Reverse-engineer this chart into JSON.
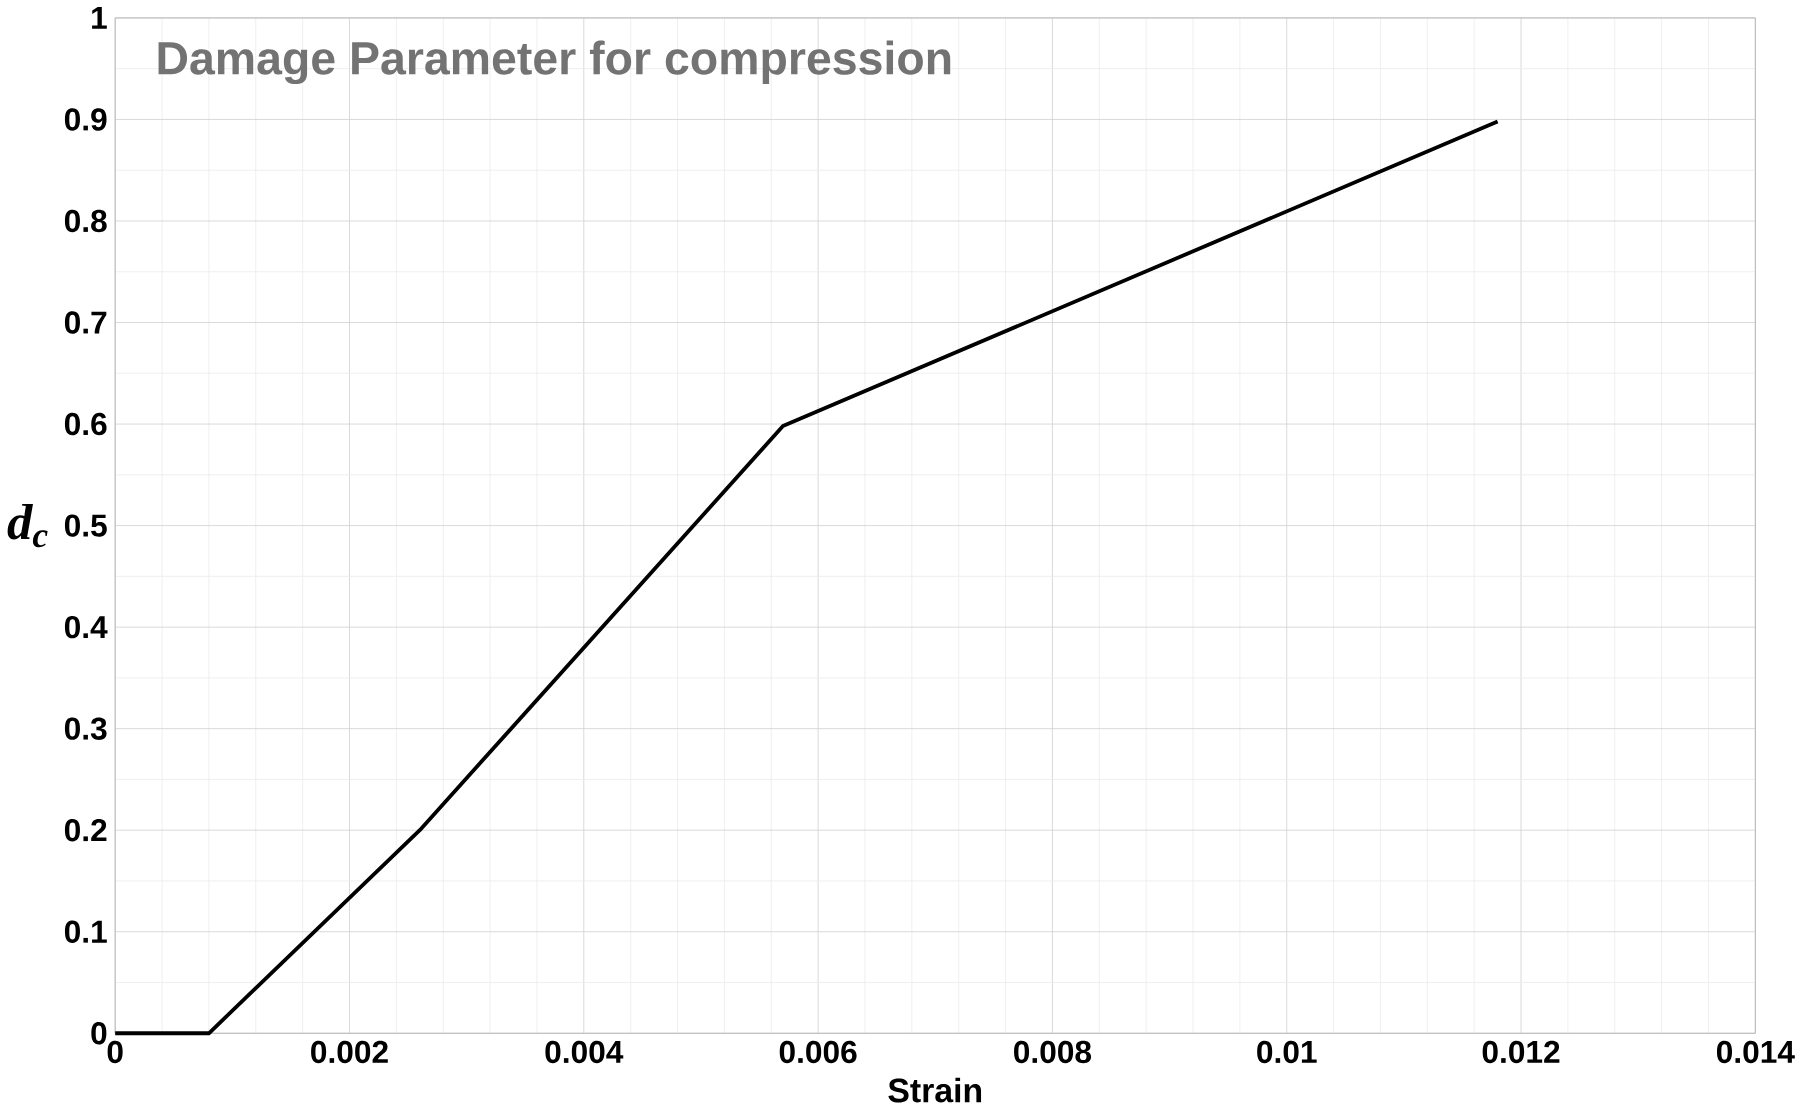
{
  "chart_data": {
    "type": "line",
    "title": "Damage Parameter for compression",
    "xlabel": "Strain",
    "ylabel": "d$_{c}$",
    "series": [
      {
        "color": "#000000",
        "x": [
          0,
          0.0008,
          0.0026,
          0.0057,
          0.0118
        ],
        "values": [
          0,
          0,
          0.2,
          0.598,
          0.898
        ]
      }
    ],
    "xlim": [
      0,
      0.014
    ],
    "ylim": [
      0,
      1
    ],
    "xticks": [
      0,
      0.002,
      0.004,
      0.006,
      0.008,
      0.01,
      0.012,
      0.014
    ],
    "yticks": [
      0,
      0.1,
      0.2,
      0.3,
      0.4,
      0.5,
      0.6,
      0.7,
      0.8,
      0.9,
      1
    ],
    "grid": true,
    "marker": "none",
    "line_style": "solid"
  }
}
